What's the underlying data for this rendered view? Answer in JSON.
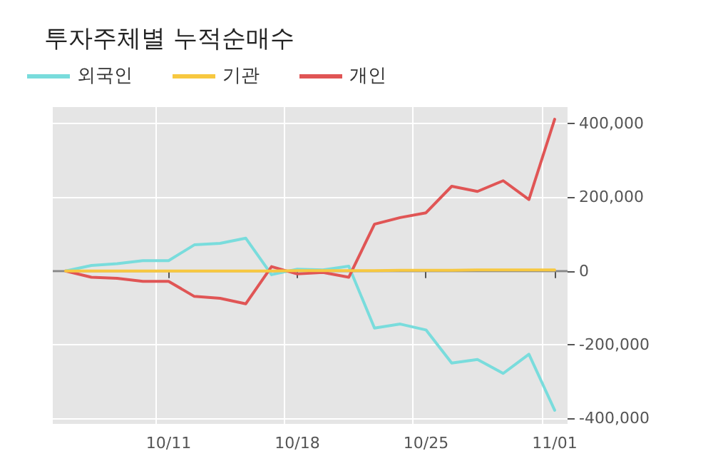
{
  "chart_data": {
    "type": "line",
    "title": "투자주체별 누적순매수",
    "categories": [
      null,
      null,
      null,
      null,
      "10/11",
      null,
      null,
      null,
      null,
      "10/18",
      null,
      null,
      null,
      null,
      "10/25",
      null,
      null,
      null,
      null,
      "11/01"
    ],
    "series": [
      {
        "name": "외국인",
        "color": "#79dcdc",
        "values": [
          0,
          15000,
          20000,
          28000,
          28000,
          71000,
          75000,
          89000,
          -10000,
          5000,
          3000,
          13000,
          -155000,
          -144000,
          -160000,
          -250000,
          -240000,
          -278000,
          -226000,
          -378000
        ]
      },
      {
        "name": "기관",
        "color": "#f7c840",
        "values": [
          0,
          0,
          0,
          0,
          0,
          0,
          0,
          0,
          0,
          1000,
          1000,
          1000,
          1000,
          2000,
          2000,
          2000,
          3000,
          3000,
          3000,
          3000
        ]
      },
      {
        "name": "개인",
        "color": "#e05555",
        "values": [
          0,
          -17000,
          -20000,
          -28000,
          -28000,
          -69000,
          -74000,
          -89000,
          12000,
          -8000,
          -4000,
          -17000,
          127000,
          145000,
          158000,
          230000,
          216000,
          245000,
          194000,
          412000
        ]
      }
    ],
    "ylim": [
      -415000,
      445000
    ],
    "yticks": [
      {
        "value": -400000,
        "label": "-400,000"
      },
      {
        "value": -200000,
        "label": "-200,000"
      },
      0,
      {
        "value": 200000,
        "label": "200,000"
      },
      {
        "value": 400000,
        "label": "400,000"
      }
    ],
    "ref_lines": [
      {
        "axis": "y",
        "value": 0,
        "color": "#888888"
      }
    ],
    "grid": true,
    "legend": "top left",
    "marker": "none",
    "line_style": "solid"
  }
}
